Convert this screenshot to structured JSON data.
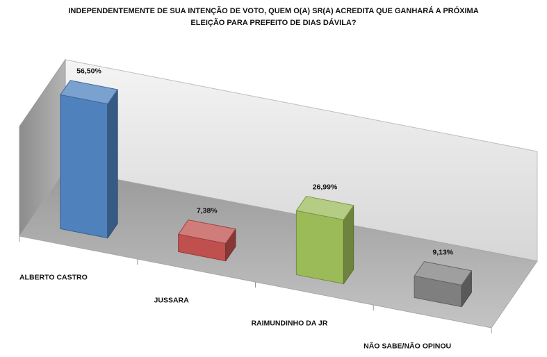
{
  "chart_data": {
    "type": "bar",
    "title_lines": [
      "INDEPENDENTEMENTE DE SUA INTENÇÃO DE VOTO, QUEM O(A) SR(A) ACREDITA QUE GANHARÁ A PRÓXIMA",
      "ELEIÇÃO PARA PREFEITO DE DIAS DÁVILA?"
    ],
    "categories": [
      "ALBERTO CASTRO",
      "JUSSARA",
      "RAIMUNDINHO DA JR",
      "NÃO SABE/NÃO OPINOU"
    ],
    "values": [
      56.5,
      7.38,
      26.99,
      9.13
    ],
    "value_labels": [
      "56,50%",
      "7,38%",
      "26,99%",
      "9,13%"
    ],
    "colors": [
      "#4f81bd",
      "#c0504d",
      "#9bbb59",
      "#7f7f7f"
    ],
    "ylim": [
      0,
      60
    ],
    "grid": false,
    "legend": "none",
    "style": "3d-perspective"
  }
}
